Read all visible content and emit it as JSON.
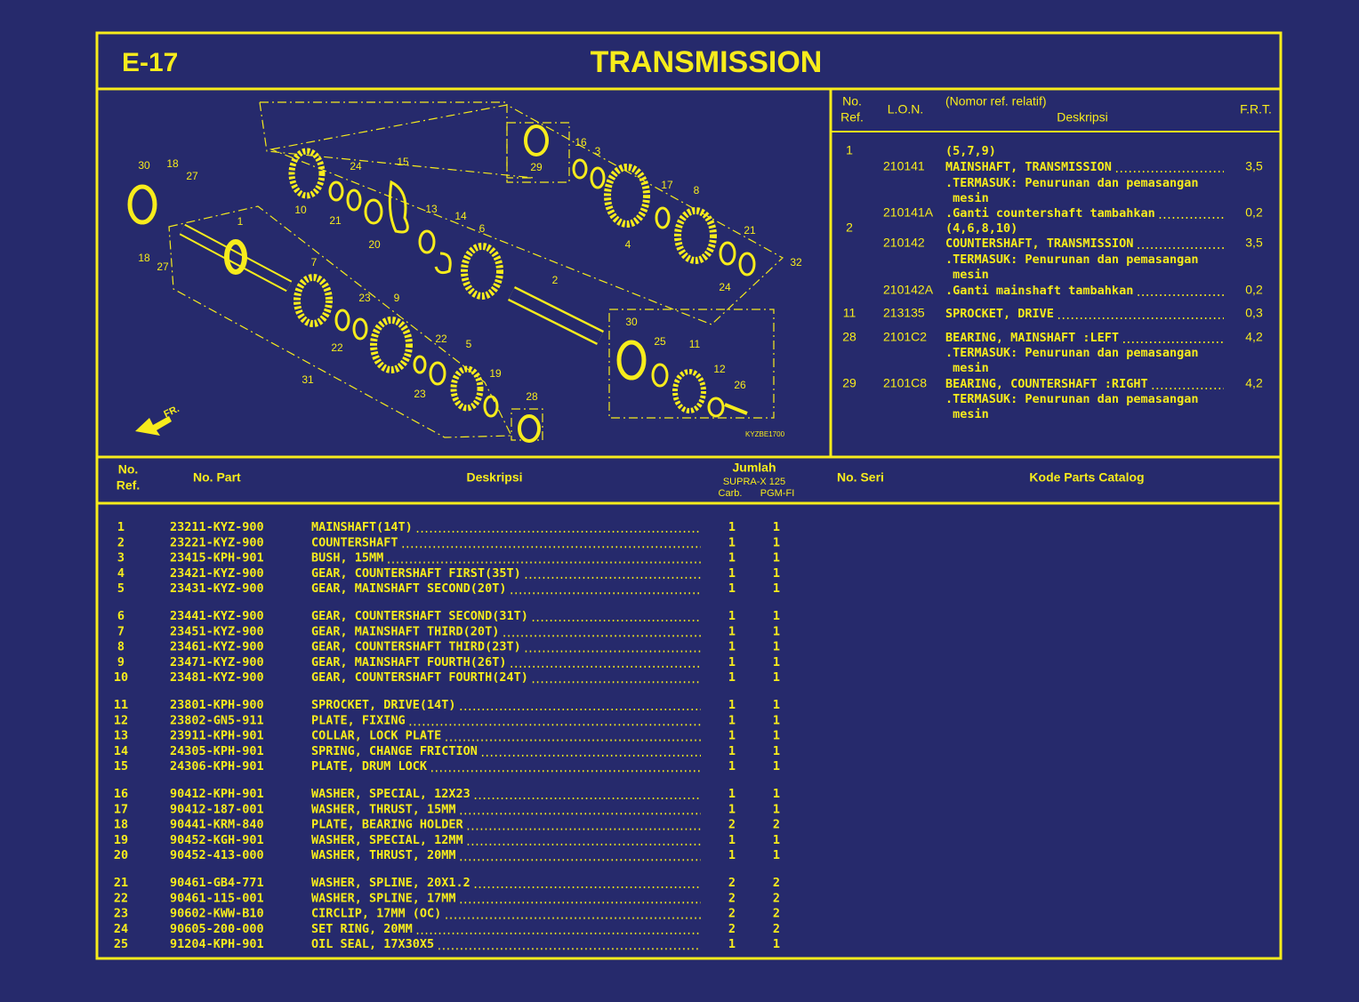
{
  "header": {
    "code": "E-17",
    "title": "TRANSMISSION"
  },
  "diagram": {
    "callouts": [
      "30",
      "18",
      "27",
      "1",
      "18",
      "27",
      "24",
      "15",
      "10",
      "21",
      "20",
      "13",
      "14",
      "6",
      "7",
      "23",
      "9",
      "22",
      "22",
      "5",
      "31",
      "23",
      "19",
      "28",
      "2",
      "29",
      "16",
      "3",
      "4",
      "17",
      "8",
      "21",
      "24",
      "32",
      "30",
      "25",
      "11",
      "12",
      "26"
    ],
    "drawing_code": "KYZBE1700",
    "direction": "FR."
  },
  "lon_table": {
    "headers": {
      "ref": [
        "No.",
        "Ref."
      ],
      "lon": "L.O.N.",
      "note": "(Nomor ref. relatif)",
      "desc": "Deskripsi",
      "frt": "F.R.T."
    },
    "rows": [
      {
        "ref": "1",
        "desc": "(5,7,9)"
      },
      {
        "lon": "210141",
        "desc": "MAINSHAFT, TRANSMISSION",
        "frt": "3,5"
      },
      {
        "desc": ".TERMASUK: Penurunan dan pemasangan"
      },
      {
        "desc": " mesin"
      },
      {
        "lon": "210141A",
        "desc": ".Ganti countershaft tambahkan",
        "frt": "0,2"
      },
      {
        "ref": "2",
        "desc": "(4,6,8,10)"
      },
      {
        "lon": "210142",
        "desc": "COUNTERSHAFT, TRANSMISSION",
        "frt": "3,5"
      },
      {
        "desc": ".TERMASUK: Penurunan dan pemasangan"
      },
      {
        "desc": " mesin"
      },
      {
        "lon": "210142A",
        "desc": ".Ganti mainshaft tambahkan",
        "frt": "0,2"
      },
      {
        "ref": "11",
        "lon": "213135",
        "desc": "SPROCKET, DRIVE",
        "frt": "0,3"
      },
      {
        "ref": "28",
        "lon": "2101C2",
        "desc": "BEARING, MAINSHAFT :LEFT",
        "frt": "4,2"
      },
      {
        "desc": ".TERMASUK: Penurunan dan pemasangan"
      },
      {
        "desc": " mesin"
      },
      {
        "ref": "29",
        "lon": "2101C8",
        "desc": "BEARING, COUNTERSHAFT :RIGHT",
        "frt": "4,2"
      },
      {
        "desc": ".TERMASUK: Penurunan dan pemasangan"
      },
      {
        "desc": " mesin"
      }
    ]
  },
  "parts_table": {
    "headers": {
      "ref": [
        "No.",
        "Ref."
      ],
      "part": "No. Part",
      "desc": "Deskripsi",
      "qty": "Jumlah",
      "model": "SUPRA-X 125",
      "carb": "Carb.",
      "pgm": "PGM-FI",
      "serial": "No. Seri",
      "catalog": "Kode Parts Catalog"
    },
    "rows": [
      [
        "1",
        "23211-KYZ-900",
        "MAINSHAFT(14T)",
        1,
        1
      ],
      [
        "2",
        "23221-KYZ-900",
        "COUNTERSHAFT",
        1,
        1
      ],
      [
        "3",
        "23415-KPH-901",
        "BUSH, 15MM",
        1,
        1
      ],
      [
        "4",
        "23421-KYZ-900",
        "GEAR, COUNTERSHAFT FIRST(35T)",
        1,
        1
      ],
      [
        "5",
        "23431-KYZ-900",
        "GEAR, MAINSHAFT SECOND(20T)",
        1,
        1
      ],
      [
        "6",
        "23441-KYZ-900",
        "GEAR, COUNTERSHAFT SECOND(31T)",
        1,
        1
      ],
      [
        "7",
        "23451-KYZ-900",
        "GEAR, MAINSHAFT THIRD(20T)",
        1,
        1
      ],
      [
        "8",
        "23461-KYZ-900",
        "GEAR, COUNTERSHAFT THIRD(23T)",
        1,
        1
      ],
      [
        "9",
        "23471-KYZ-900",
        "GEAR, MAINSHAFT FOURTH(26T)",
        1,
        1
      ],
      [
        "10",
        "23481-KYZ-900",
        "GEAR, COUNTERSHAFT FOURTH(24T)",
        1,
        1
      ],
      [
        "11",
        "23801-KPH-900",
        "SPROCKET, DRIVE(14T)",
        1,
        1
      ],
      [
        "12",
        "23802-GN5-911",
        "PLATE, FIXING",
        1,
        1
      ],
      [
        "13",
        "23911-KPH-901",
        "COLLAR, LOCK PLATE",
        1,
        1
      ],
      [
        "14",
        "24305-KPH-901",
        "SPRING, CHANGE FRICTION",
        1,
        1
      ],
      [
        "15",
        "24306-KPH-901",
        "PLATE, DRUM LOCK",
        1,
        1
      ],
      [
        "16",
        "90412-KPH-901",
        "WASHER, SPECIAL, 12X23",
        1,
        1
      ],
      [
        "17",
        "90412-187-001",
        "WASHER, THRUST, 15MM",
        1,
        1
      ],
      [
        "18",
        "90441-KRM-840",
        "PLATE, BEARING HOLDER",
        2,
        2
      ],
      [
        "19",
        "90452-KGH-901",
        "WASHER, SPECIAL, 12MM",
        1,
        1
      ],
      [
        "20",
        "90452-413-000",
        "WASHER, THRUST, 20MM",
        1,
        1
      ],
      [
        "21",
        "90461-GB4-771",
        "WASHER, SPLINE, 20X1.2",
        2,
        2
      ],
      [
        "22",
        "90461-115-001",
        "WASHER, SPLINE, 17MM",
        2,
        2
      ],
      [
        "23",
        "90602-KWW-B10",
        "CIRCLIP, 17MM (OC)",
        2,
        2
      ],
      [
        "24",
        "90605-200-000",
        "SET RING, 20MM",
        2,
        2
      ],
      [
        "25",
        "91204-KPH-901",
        "OIL SEAL, 17X30X5",
        1,
        1
      ]
    ]
  }
}
